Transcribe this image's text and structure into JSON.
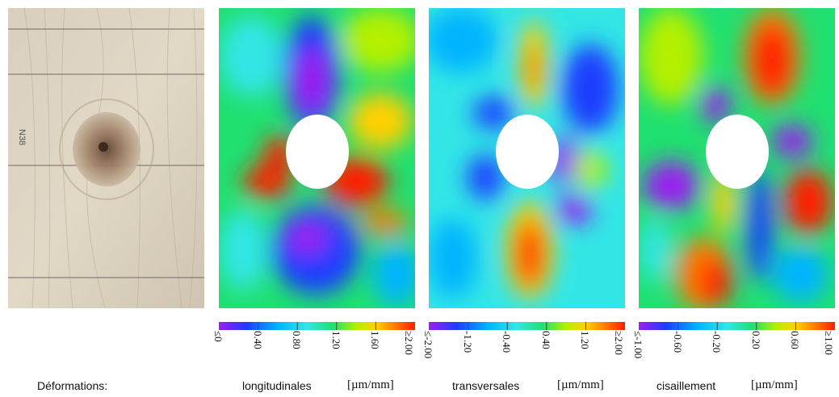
{
  "caption_label": "Déformations:",
  "panels": [
    {
      "title": "longitudinales",
      "unit": "[µm/mm]",
      "ticks": [
        "≤0",
        "0.40",
        "0.80",
        "1.20",
        "1.60",
        "≥2.00"
      ]
    },
    {
      "title": "transversales",
      "unit": "[µm/mm]",
      "ticks": [
        "≤-2.00",
        "-1.20",
        "-0.40",
        "0.40",
        "1.20",
        "≥2.00"
      ]
    },
    {
      "title": "cisaillement",
      "unit": "[µm/mm]",
      "ticks": [
        "≤-1.00",
        "-0.60",
        "-0.20",
        "0.20",
        "0.60",
        "≥1.00"
      ]
    }
  ],
  "photo": {
    "pencil_mark": "N38"
  },
  "colormap": [
    "#9b1ff0",
    "#1e3cff",
    "#00b4ff",
    "#32e6e6",
    "#20e070",
    "#b4f000",
    "#ffd000",
    "#ff7a00",
    "#ff1a00"
  ]
}
